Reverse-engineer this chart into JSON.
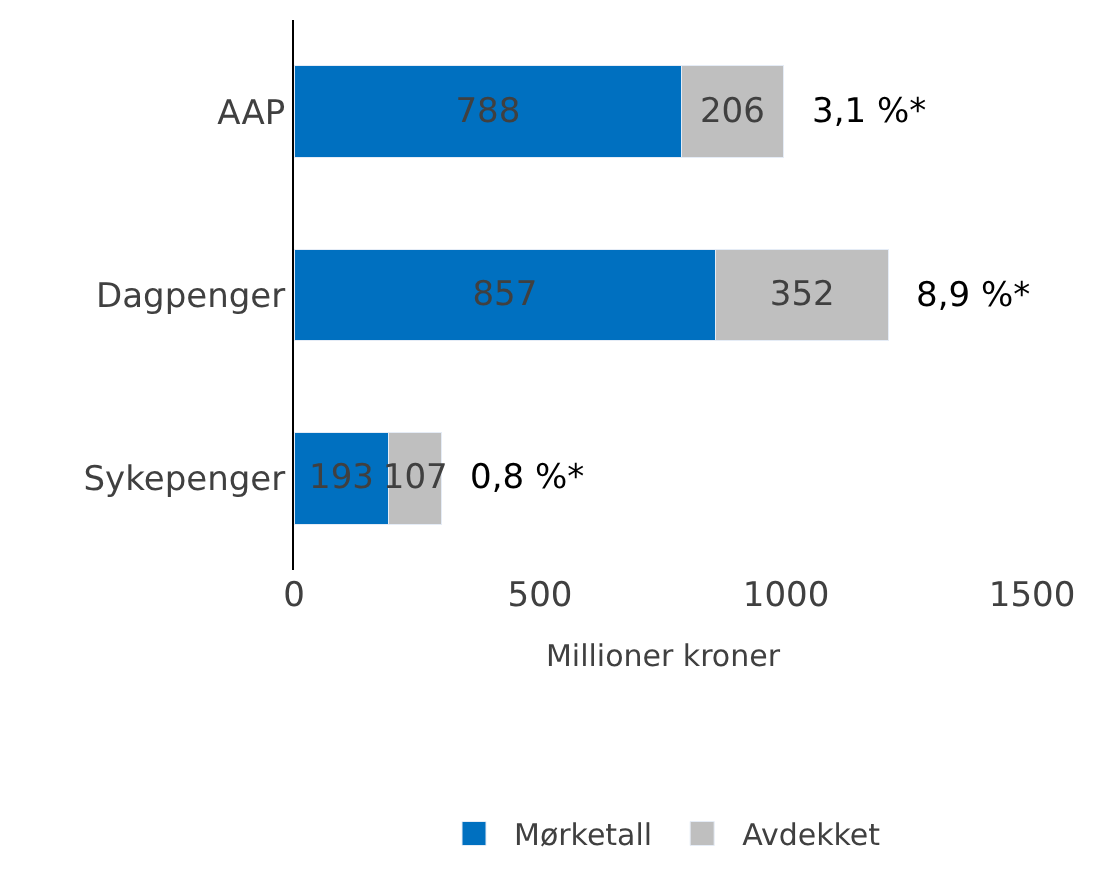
{
  "chart_data": {
    "type": "bar",
    "orientation": "horizontal",
    "stacked": true,
    "categories": [
      "AAP",
      "Dagpenger",
      "Sykepenger"
    ],
    "series": [
      {
        "name": "Mørketall",
        "color": "#0070c0",
        "values": [
          788,
          857,
          193
        ]
      },
      {
        "name": "Avdekket",
        "color": "#bfbfbf",
        "values": [
          206,
          352,
          107
        ]
      }
    ],
    "xlabel": "Millioner kroner",
    "xlim": [
      0,
      1500
    ],
    "xticks": [
      0,
      500,
      1000,
      1500
    ],
    "legend": "bottom",
    "data_labels": true,
    "annotations": [
      {
        "text": "3,1 %*",
        "x": 994,
        "y": "AAP"
      },
      {
        "text": "8,9 %*",
        "x": 1209,
        "y": "Dagpenger"
      },
      {
        "text": "0,8 %*",
        "x": 300,
        "y": "Sykepenger"
      }
    ]
  }
}
